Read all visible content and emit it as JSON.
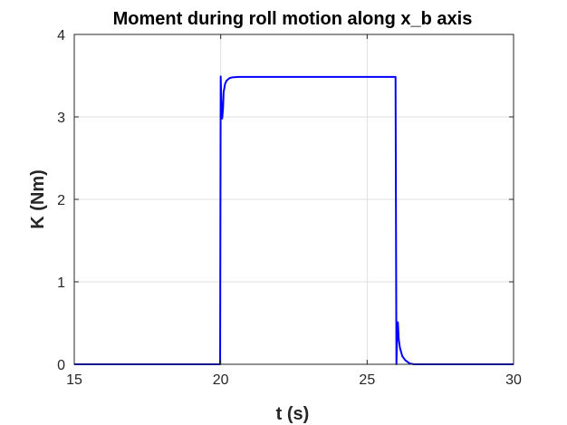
{
  "chart_data": {
    "type": "line",
    "title": "Moment during roll motion along x_b axis",
    "xlabel": "t (s)",
    "ylabel": "K (Nm)",
    "xlim": [
      15,
      30
    ],
    "ylim": [
      0,
      4
    ],
    "xticks": [
      15,
      20,
      25,
      30
    ],
    "yticks": [
      0,
      1,
      2,
      3,
      4
    ],
    "xtick_labels": [
      "15",
      "20",
      "25",
      "30"
    ],
    "ytick_labels": [
      "0",
      "1",
      "2",
      "3",
      "4"
    ],
    "grid": true,
    "box": true,
    "series": [
      {
        "color": "#0000ff",
        "x": [
          15,
          19.98,
          20.0,
          20.02,
          20.05,
          20.08,
          20.1,
          20.15,
          20.2,
          20.3,
          20.4,
          20.6,
          21.0,
          22.0,
          24.0,
          25.97,
          26.0,
          26.02,
          26.05,
          26.08,
          26.12,
          26.2,
          26.3,
          26.45,
          26.6,
          27.0,
          30.0
        ],
        "y": [
          0,
          0,
          3.49,
          3.2,
          2.98,
          3.1,
          3.3,
          3.4,
          3.44,
          3.47,
          3.48,
          3.485,
          3.485,
          3.485,
          3.485,
          3.485,
          0.0,
          0.3,
          0.51,
          0.3,
          0.2,
          0.1,
          0.05,
          0.01,
          0.0,
          0.0,
          0.0
        ]
      }
    ]
  },
  "colors": {
    "background": "#ffffff",
    "axes_face": "#ffffff",
    "axis_line": "#262626",
    "grid": "#dfdfdf",
    "line": "#0000ff"
  }
}
